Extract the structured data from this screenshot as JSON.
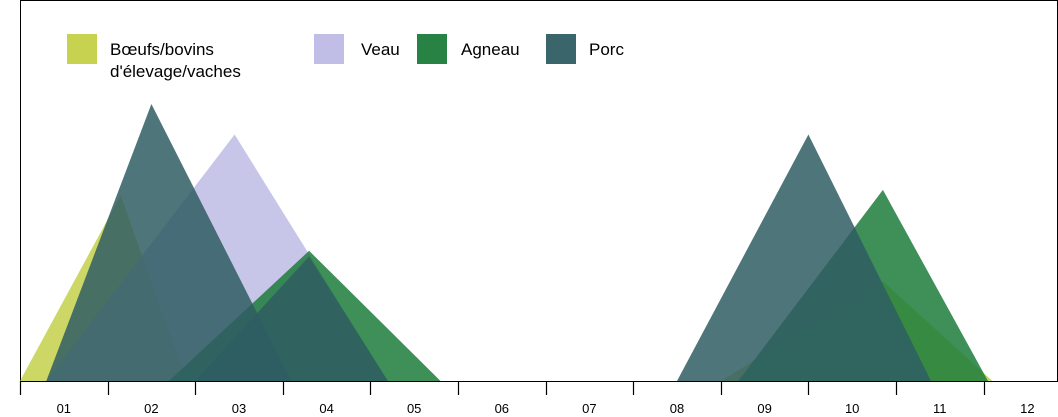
{
  "chart_data": {
    "type": "area",
    "title": "",
    "xlabel": "",
    "ylabel": "",
    "categories": [
      "01",
      "02",
      "03",
      "04",
      "05",
      "06",
      "07",
      "08",
      "09",
      "10",
      "11",
      "12"
    ],
    "ylim": [
      0,
      100
    ],
    "grid": false,
    "legend_position": "top-left",
    "series": [
      {
        "name": "Bœufs/bovins\nd'élevage/vaches",
        "color": "#b9c82a",
        "opacity": 0.72,
        "shapes": [
          {
            "start": 0.0,
            "peak": 1.15,
            "end": 1.9,
            "height": 67
          },
          {
            "start": 8.0,
            "peak": 9.85,
            "end": 11.1,
            "height": 36
          }
        ]
      },
      {
        "name": "Veau",
        "color": "#b2b0e0",
        "opacity": 0.72,
        "shapes": [
          {
            "start": 0.3,
            "peak": 2.45,
            "end": 4.2,
            "height": 89
          }
        ]
      },
      {
        "name": "Agneau",
        "color": "#1e7d3c",
        "opacity": 0.86,
        "shapes": [
          {
            "start": 1.7,
            "peak": 3.3,
            "end": 4.8,
            "height": 47
          },
          {
            "start": 8.2,
            "peak": 9.85,
            "end": 11.05,
            "height": 69
          }
        ]
      },
      {
        "name": "Porc",
        "color": "#2f5d63",
        "opacity": 0.85,
        "shapes": [
          {
            "start": 0.3,
            "peak": 1.5,
            "end": 3.1,
            "height": 100
          },
          {
            "start": 2.0,
            "peak": 3.3,
            "end": 4.2,
            "height": 45
          },
          {
            "start": 7.5,
            "peak": 9.0,
            "end": 10.4,
            "height": 89
          }
        ]
      }
    ]
  }
}
